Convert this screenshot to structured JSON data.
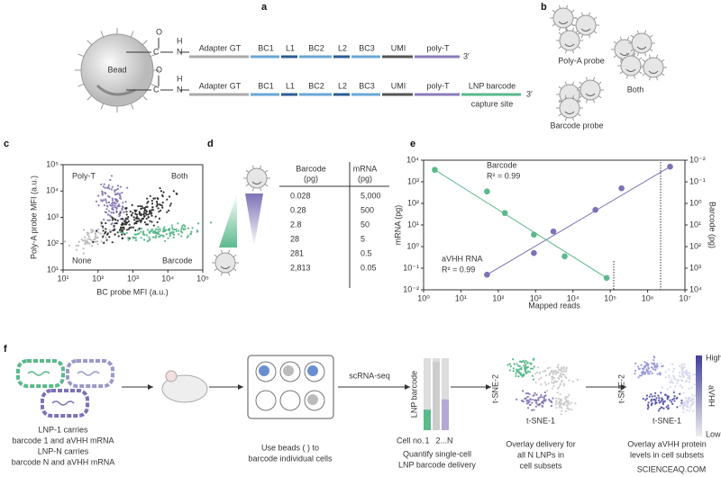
{
  "panel_labels": [
    "a",
    "b",
    "c",
    "d",
    "e",
    "f"
  ],
  "panel_a": {
    "bead": "Bead",
    "atoms": {
      "o": "O",
      "c": "C",
      "n": "N",
      "h": "H"
    },
    "row1": [
      "Adapter GT",
      "BC1",
      "L1",
      "BC2",
      "L2",
      "BC3",
      "UMI",
      "poly-T"
    ],
    "row2": [
      "Adapter GT",
      "BC1",
      "L1",
      "BC2",
      "L2",
      "BC3",
      "UMI",
      "poly-T",
      "LNP barcode"
    ],
    "row2_note": "capture site",
    "end": "3′"
  },
  "panel_b": {
    "poly_a": "Poly-A probe",
    "both": "Both",
    "barcode": "Barcode probe"
  },
  "panel_c": {
    "ylabel": "Poly-A probe MFI (a.u.)",
    "xlabel": "BC probe MFI (a.u.)",
    "quadrants": {
      "top_left": "Poly-T",
      "top_right": "Both",
      "bottom_left": "None",
      "bottom_right": "Barcode"
    },
    "xticks": [
      "10¹",
      "10²",
      "10³",
      "10⁴",
      "10⁵"
    ],
    "yticks": [
      "10¹",
      "10²",
      "10³",
      "10⁴",
      "10⁵"
    ]
  },
  "panel_d": {
    "headers": [
      [
        "Barcode",
        "(pg)"
      ],
      [
        "mRNA",
        "(pg)"
      ]
    ],
    "rows": [
      [
        "0.028",
        "5,000"
      ],
      [
        "0.28",
        "500"
      ],
      [
        "2.8",
        "50"
      ],
      [
        "28",
        "5"
      ],
      [
        "281",
        "0.5"
      ],
      [
        "2,813",
        "0.05"
      ]
    ]
  },
  "panel_e": {
    "chart": {
      "type": "scatter",
      "xlabel": "Mapped reads",
      "ylabel": "mRNA (pg)",
      "y2label": "Barcode (pg)",
      "log": true,
      "xlim": [
        1,
        10000000
      ],
      "xticks": [
        {
          "value": 1,
          "label": "10⁰"
        },
        {
          "value": 10,
          "label": "10¹"
        },
        {
          "value": 100,
          "label": "10²"
        },
        {
          "value": 1000,
          "label": "10³"
        },
        {
          "value": 10000,
          "label": "10⁴"
        },
        {
          "value": 100000,
          "label": "10⁵"
        },
        {
          "value": 1000000,
          "label": "10⁶"
        },
        {
          "value": 10000000,
          "label": "10⁷"
        }
      ],
      "ylim": [
        0.01,
        10000
      ],
      "yticks": [
        {
          "value": 0.01,
          "label": "10⁻²"
        },
        {
          "value": 0.1,
          "label": "10⁻¹"
        },
        {
          "value": 1,
          "label": "10⁰"
        },
        {
          "value": 10,
          "label": "10¹"
        },
        {
          "value": 100,
          "label": "10²"
        },
        {
          "value": 1000,
          "label": "10³"
        },
        {
          "value": 10000,
          "label": "10⁴"
        }
      ],
      "y2lim": [
        10000,
        0.01
      ],
      "y2ticks": [
        {
          "value": 0.01,
          "label": "10⁻²"
        },
        {
          "value": 0.1,
          "label": "10⁻¹"
        },
        {
          "value": 1,
          "label": "10⁰"
        },
        {
          "value": 10,
          "label": "10¹"
        },
        {
          "value": 100,
          "label": "10²"
        },
        {
          "value": 1000,
          "label": "10³"
        },
        {
          "value": 10000,
          "label": "10⁴"
        }
      ],
      "series": [
        {
          "name": "Barcode",
          "color": "#5bb98b",
          "axis": "y2",
          "fit": "R² = 0.99",
          "x": [
            2,
            50,
            150,
            900,
            6000,
            80000
          ],
          "values": [
            0.028,
            0.28,
            2.8,
            28,
            281,
            2813
          ]
        },
        {
          "name": "aVHH RNA",
          "color": "#7d72b5",
          "fit": "R² = 0.99",
          "x": [
            50,
            900,
            3000,
            40000,
            200000,
            4000000
          ],
          "values": [
            0.05,
            0.5,
            5,
            50,
            500,
            5000
          ]
        }
      ]
    }
  },
  "panel_f": {
    "lnp1": [
      "LNP-1 carries",
      "barcode 1 and aVHH mRNA"
    ],
    "lnpn": [
      "LNP-N carries",
      "barcode N and aVHH mRNA"
    ],
    "beads": [
      "Use beads (      ) to",
      "barcode individual cells"
    ],
    "scrna": "scRNA-seq",
    "bar_ylabel": "LNP barcode",
    "cell_no": "Cell no.",
    "cell_1": "1",
    "cell_n": "2...N",
    "quantify": [
      "Quantify single-cell",
      "LNP barcode delivery"
    ],
    "tsne2": "t-SNE-2",
    "tsne1": "t-SNE-1",
    "overlay1": [
      "Overlay delivery for",
      "all N LNPs in",
      "cell subsets"
    ],
    "overlay2": [
      "Overlay aVHH protein",
      "levels in cell subsets"
    ],
    "scale": {
      "high": "High",
      "label": "aVHH",
      "low": "Low"
    }
  },
  "watermark": "SCIENCEAQ.COM"
}
